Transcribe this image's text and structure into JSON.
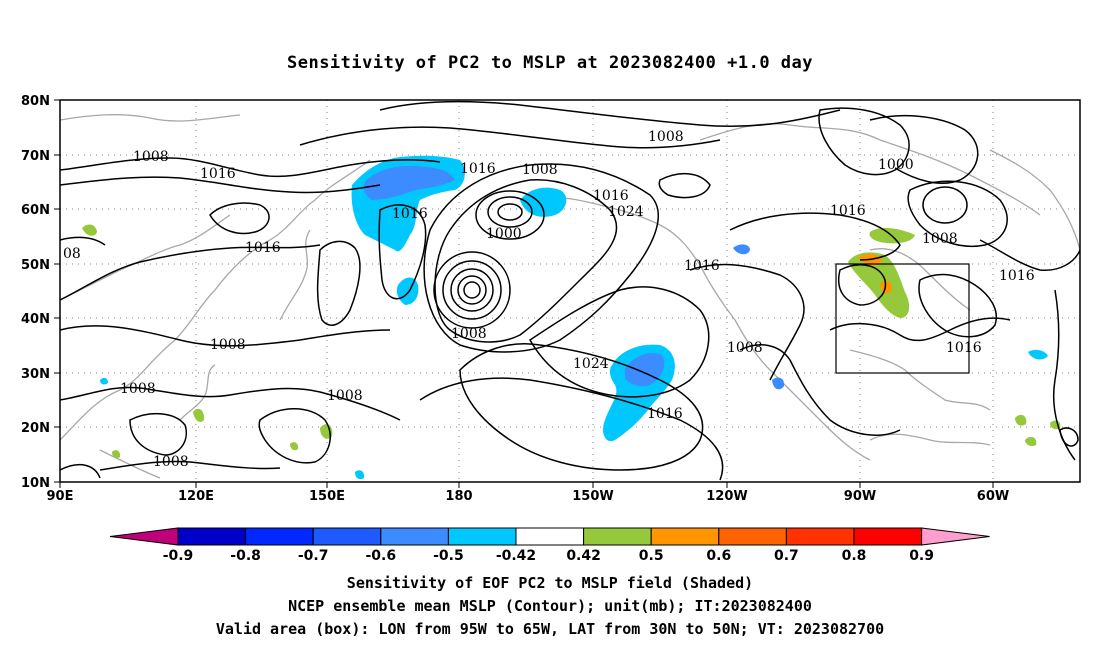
{
  "title": "Sensitivity of PC2 to MSLP at 2023082400 +1.0 day",
  "map": {
    "lat_labels": [
      "80N",
      "70N",
      "60N",
      "50N",
      "40N",
      "30N",
      "20N",
      "10N"
    ],
    "lon_labels": [
      "90E",
      "120E",
      "150E",
      "180",
      "150W",
      "120W",
      "90W",
      "60W"
    ],
    "valid_box": {
      "lon_from": "95W",
      "lon_to": "65W",
      "lat_from": "30N",
      "lat_to": "50N"
    },
    "contour_labels": [
      "1008",
      "1016",
      "1024",
      "1000",
      "08"
    ]
  },
  "colorbar": {
    "tick_labels": [
      "-0.9",
      "-0.8",
      "-0.7",
      "-0.6",
      "-0.5",
      "-0.42",
      "0.42",
      "0.5",
      "0.6",
      "0.7",
      "0.8",
      "0.9"
    ],
    "colors": [
      "#c0007a",
      "#0000c8",
      "#0028ff",
      "#1e5aff",
      "#3c8cff",
      "#00c8ff",
      "#ffffff",
      "#96c83c",
      "#ff9600",
      "#ff6400",
      "#ff3200",
      "#ff0000",
      "#ff9ecf"
    ]
  },
  "captions": [
    "Sensitivity of EOF PC2 to MSLP field (Shaded)",
    "NCEP ensemble mean MSLP (Contour); unit(mb); IT:2023082400",
    "Valid area (box): LON from 95W to 65W, LAT from 30N to 50N; VT: 2023082700"
  ]
}
